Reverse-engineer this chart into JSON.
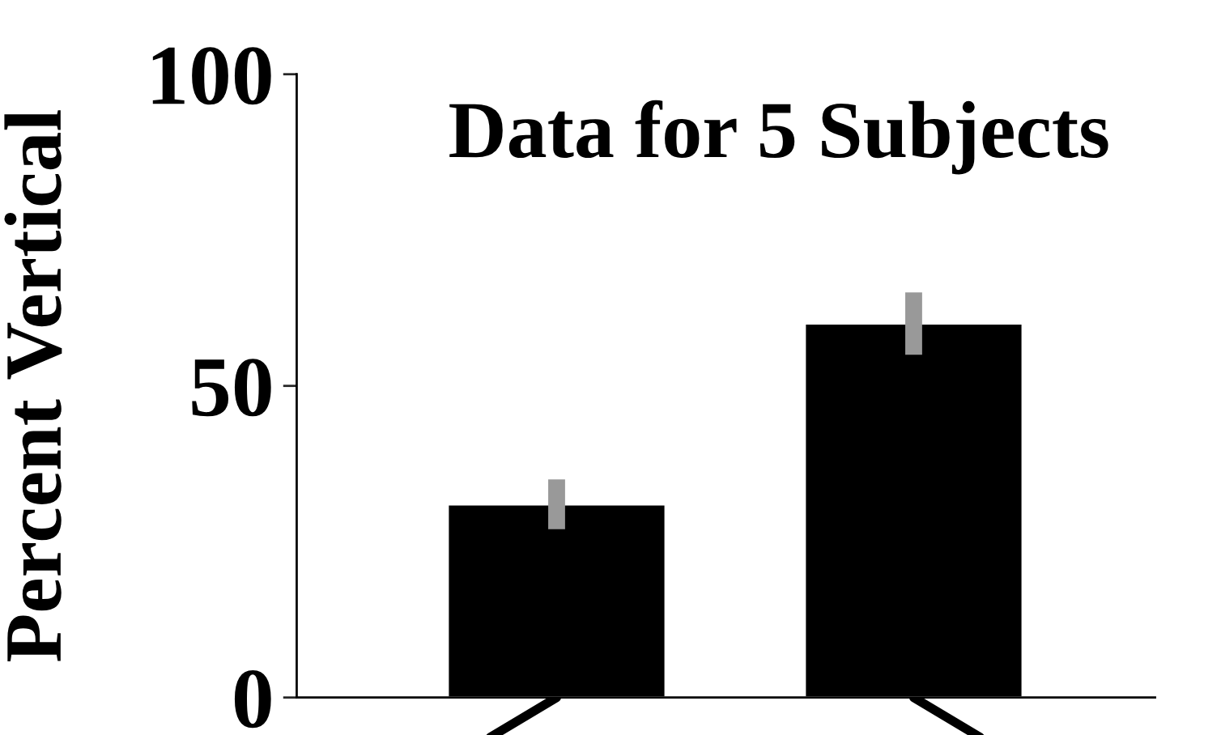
{
  "chart_data": {
    "type": "bar",
    "title": "Data for 5 Subjects",
    "ylabel": "Percent Vertical",
    "categories": [
      null,
      null
    ],
    "series": [
      {
        "color": "#000000",
        "values": [
          31,
          60
        ],
        "errors": [
          4,
          5
        ]
      }
    ],
    "ylim": [
      0,
      100
    ],
    "yticks": [
      0,
      50,
      100
    ],
    "grid": false,
    "legend": false
  }
}
